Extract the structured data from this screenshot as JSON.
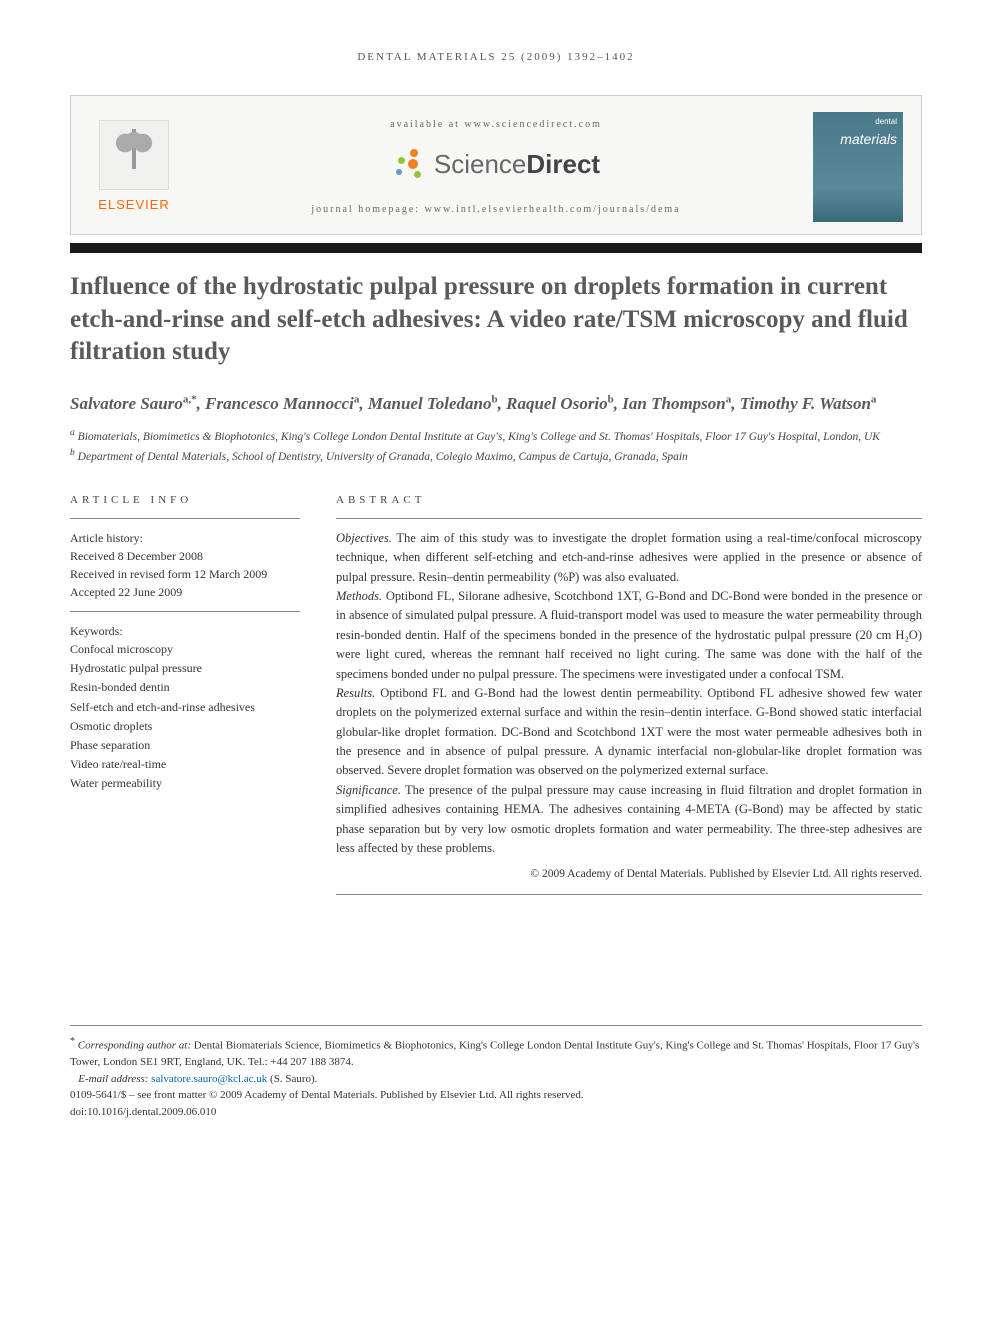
{
  "running_head": "DENTAL MATERIALS 25 (2009) 1392–1402",
  "header": {
    "available_line": "available at www.sciencedirect.com",
    "sd_brand_light": "Science",
    "sd_brand_bold": "Direct",
    "homepage_line": "journal homepage: www.intl.elsevierhealth.com/journals/dema",
    "elsevier_label": "ELSEVIER",
    "journal_cover_small": "dental",
    "journal_cover_title": "materials"
  },
  "title": "Influence of the hydrostatic pulpal pressure on droplets formation in current etch-and-rinse and self-etch adhesives: A video rate/TSM microscopy and fluid filtration study",
  "authors_html": "Salvatore Sauro<sup>a,*</sup>, Francesco Mannocci<sup>a</sup>, Manuel Toledano<sup>b</sup>, Raquel Osorio<sup>b</sup>, Ian Thompson<sup>a</sup>, Timothy F. Watson<sup>a</sup>",
  "authors": [
    {
      "name": "Salvatore Sauro",
      "marks": "a,*"
    },
    {
      "name": "Francesco Mannocci",
      "marks": "a"
    },
    {
      "name": "Manuel Toledano",
      "marks": "b"
    },
    {
      "name": "Raquel Osorio",
      "marks": "b"
    },
    {
      "name": "Ian Thompson",
      "marks": "a"
    },
    {
      "name": "Timothy F. Watson",
      "marks": "a"
    }
  ],
  "affiliations": {
    "a": "Biomaterials, Biomimetics & Biophotonics, King's College London Dental Institute at Guy's, King's College and St. Thomas' Hospitals, Floor 17 Guy's Hospital, London, UK",
    "b": "Department of Dental Materials, School of Dentistry, University of Granada, Colegio Maximo, Campus de Cartuja, Granada, Spain"
  },
  "article_info": {
    "heading": "ARTICLE INFO",
    "history_label": "Article history:",
    "received": "Received 8 December 2008",
    "revised": "Received in revised form 12 March 2009",
    "accepted": "Accepted 22 June 2009",
    "keywords_label": "Keywords:",
    "keywords": [
      "Confocal microscopy",
      "Hydrostatic pulpal pressure",
      "Resin-bonded dentin",
      "Self-etch and etch-and-rinse adhesives",
      "Osmotic droplets",
      "Phase separation",
      "Video rate/real-time",
      "Water permeability"
    ]
  },
  "abstract": {
    "heading": "ABSTRACT",
    "objectives_label": "Objectives.",
    "objectives": "The aim of this study was to investigate the droplet formation using a real-time/confocal microscopy technique, when different self-etching and etch-and-rinse adhesives were applied in the presence or absence of pulpal pressure. Resin–dentin permeability (%P) was also evaluated.",
    "methods_label": "Methods.",
    "methods": "Optibond FL, Silorane adhesive, Scotchbond 1XT, G-Bond and DC-Bond were bonded in the presence or in absence of simulated pulpal pressure. A fluid-transport model was used to measure the water permeability through resin-bonded dentin. Half of the specimens bonded in the presence of the hydrostatic pulpal pressure (20 cm H₂O) were light cured, whereas the remnant half received no light curing. The same was done with the half of the specimens bonded under no pulpal pressure. The specimens were investigated under a confocal TSM.",
    "results_label": "Results.",
    "results": "Optibond FL and G-Bond had the lowest dentin permeability. Optibond FL adhesive showed few water droplets on the polymerized external surface and within the resin–dentin interface. G-Bond showed static interfacial globular-like droplet formation. DC-Bond and Scotchbond 1XT were the most water permeable adhesives both in the presence and in absence of pulpal pressure. A dynamic interfacial non-globular-like droplet formation was observed. Severe droplet formation was observed on the polymerized external surface.",
    "significance_label": "Significance.",
    "significance": "The presence of the pulpal pressure may cause increasing in fluid filtration and droplet formation in simplified adhesives containing HEMA. The adhesives containing 4-META (G-Bond) may be affected by static phase separation but by very low osmotic droplets formation and water permeability. The three-step adhesives are less affected by these problems.",
    "copyright": "© 2009 Academy of Dental Materials. Published by Elsevier Ltd. All rights reserved."
  },
  "footnotes": {
    "corresponding_label": "Corresponding author at:",
    "corresponding": "Dental Biomaterials Science, Biomimetics & Biophotonics, King's College London Dental Institute Guy's, King's College and St. Thomas' Hospitals, Floor 17 Guy's Tower, London SE1 9RT, England, UK. Tel.: +44 207 188 3874.",
    "email_label": "E-mail address:",
    "email": "salvatore.sauro@kcl.ac.uk",
    "email_attrib": "(S. Sauro).",
    "issn_line": "0109-5641/$ – see front matter © 2009 Academy of Dental Materials. Published by Elsevier Ltd. All rights reserved.",
    "doi_line": "doi:10.1016/j.dental.2009.06.010"
  },
  "colors": {
    "elsevier_orange": "#ff6600",
    "sd_orange": "#f58220",
    "sd_green": "#8cc63f",
    "sd_blue": "#5b9bd5",
    "title_gray": "#5a5a5a",
    "link_blue": "#0066aa",
    "cover_teal": "#4a7a8a",
    "rule_gray": "#888888",
    "black_bar": "#1a1a1a"
  }
}
